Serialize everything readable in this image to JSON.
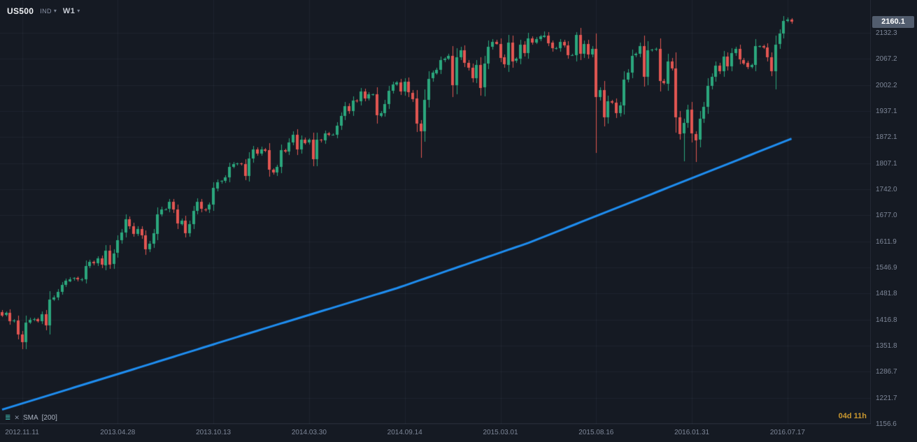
{
  "symbol_bar": {
    "symbol": "US500",
    "market_type": "IND",
    "timeframe": "W1"
  },
  "indicator": {
    "name": "SMA",
    "period_label": "[200]"
  },
  "countdown": "04d 11h",
  "current_price": "2160.1",
  "colors": {
    "background": "#151a23",
    "grid": "rgba(134,151,177,0.08)",
    "axis_text": "#7e8798",
    "bull": "#2ba77d",
    "bear": "#e25652",
    "sma_line": "#1f8ef1",
    "countdown": "#c9972f",
    "current_price_box": "#525d6e"
  },
  "chart_data": {
    "type": "candlestick",
    "title": "US500 weekly candlestick chart with SMA(200) overlay",
    "instrument": "US500",
    "timeframe": "W1",
    "last_price": 2160.1,
    "legend": [
      "SMA [200]"
    ],
    "y_range": [
      1156.6,
      2214.0
    ],
    "price_ticks": [
      2132.3,
      2067.2,
      2002.2,
      1937.1,
      1872.1,
      1807.1,
      1742.0,
      1677.0,
      1611.9,
      1546.9,
      1481.8,
      1416.8,
      1351.8,
      1286.7,
      1221.7,
      1156.6
    ],
    "x_ticks": [
      {
        "label": "2012.11.11",
        "week_index": 5
      },
      {
        "label": "2013.04.28",
        "week_index": 29
      },
      {
        "label": "2013.10.13",
        "week_index": 53
      },
      {
        "label": "2014.03.30",
        "week_index": 77
      },
      {
        "label": "2014.09.14",
        "week_index": 101
      },
      {
        "label": "2015.03.01",
        "week_index": 125
      },
      {
        "label": "2015.08.16",
        "week_index": 149
      },
      {
        "label": "2016.01.31",
        "week_index": 173
      },
      {
        "label": "2016.07.17",
        "week_index": 197
      }
    ],
    "weekly_closes": [
      1428,
      1433,
      1412,
      1414,
      1380,
      1360,
      1409,
      1416,
      1418,
      1413,
      1430,
      1402,
      1466,
      1472,
      1486,
      1503,
      1513,
      1518,
      1520,
      1516,
      1518,
      1551,
      1561,
      1557,
      1569,
      1553,
      1589,
      1555,
      1582,
      1614,
      1634,
      1667,
      1650,
      1631,
      1643,
      1627,
      1592,
      1606,
      1632,
      1680,
      1692,
      1692,
      1710,
      1691,
      1656,
      1664,
      1633,
      1655,
      1688,
      1710,
      1692,
      1690,
      1703,
      1745,
      1760,
      1762,
      1771,
      1798,
      1805,
      1806,
      1805,
      1775,
      1818,
      1841,
      1831,
      1842,
      1839,
      1790,
      1783,
      1797,
      1839,
      1836,
      1859,
      1878,
      1841,
      1866,
      1858,
      1865,
      1816,
      1865,
      1863,
      1881,
      1878,
      1878,
      1900,
      1924,
      1949,
      1936,
      1963,
      1961,
      1985,
      1968,
      1978,
      1978,
      1925,
      1932,
      1955,
      1988,
      2003,
      2008,
      1986,
      2010,
      1983,
      1968,
      1906,
      1887,
      1965,
      2018,
      2032,
      2040,
      2064,
      2068,
      2075,
      2002,
      2071,
      2089,
      2058,
      2045,
      2019,
      2052,
      1995,
      2055,
      2097,
      2110,
      2105,
      2071,
      2053,
      2108,
      2061,
      2067,
      2102,
      2081,
      2118,
      2108,
      2116,
      2123,
      2126,
      2107,
      2093,
      2094,
      2110,
      2101,
      2077,
      2077,
      2127,
      2080,
      2104,
      2078,
      2092,
      1971,
      1989,
      1921,
      1961,
      1958,
      1931,
      1951,
      2015,
      2033,
      2075,
      2079,
      2099,
      2023,
      2089,
      2090,
      2092,
      2012,
      2006,
      2061,
      2044,
      1922,
      1880,
      1907,
      1940,
      1880,
      1865,
      1918,
      1948,
      2000,
      2022,
      2050,
      2036,
      2073,
      2048,
      2081,
      2092,
      2065,
      2057,
      2047,
      2052,
      2099,
      2099,
      2096,
      2071,
      2037,
      2103,
      2130,
      2162,
      2166,
      2160.1
    ],
    "wick_low_overrides": {
      "5": 1343,
      "105": 1821,
      "113": 1972,
      "149": 1833,
      "171": 1812,
      "174": 1810,
      "194": 1992
    },
    "wick_high_overrides": {
      "136": 2135,
      "144": 2133,
      "198": 2169
    },
    "sma_200_anchors": [
      [
        0,
        1192
      ],
      [
        33,
        1293
      ],
      [
        66,
        1395
      ],
      [
        99,
        1495
      ],
      [
        132,
        1608
      ],
      [
        165,
        1738
      ],
      [
        198,
        1868
      ]
    ]
  }
}
